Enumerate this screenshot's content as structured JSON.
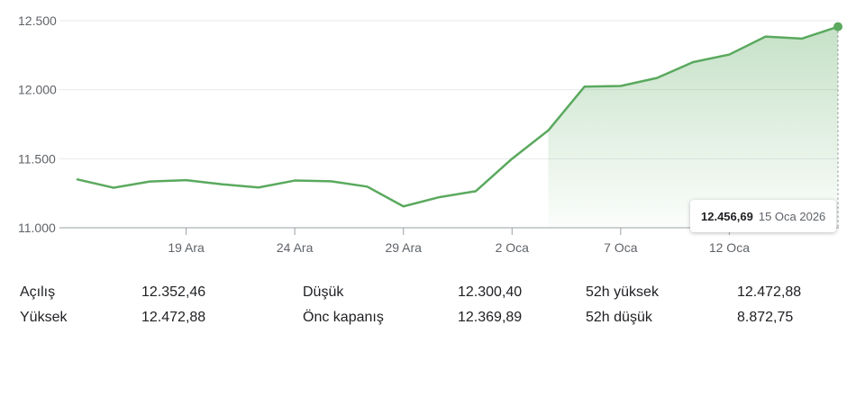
{
  "chart_data": {
    "type": "area",
    "x": [
      "16 Ara",
      "17 Ara",
      "18 Ara",
      "19 Ara",
      "22 Ara",
      "23 Ara",
      "24 Ara",
      "25 Ara",
      "26 Ara",
      "29 Ara",
      "30 Ara",
      "31 Ara",
      "2 Oca",
      "5 Oca",
      "6 Oca",
      "7 Oca",
      "8 Oca",
      "9 Oca",
      "12 Oca",
      "13 Oca",
      "14 Oca",
      "15 Oca"
    ],
    "series": [
      {
        "values": [
          11350,
          11290,
          11335,
          11345,
          11315,
          11292,
          11342,
          11337,
          11298,
          11155,
          11222,
          11265,
          11500,
          11705,
          12022,
          12027,
          12085,
          12200,
          12255,
          12385,
          12370,
          12456.69
        ]
      }
    ],
    "yticks": [
      11000,
      11500,
      12000,
      12500
    ],
    "ytick_labels": [
      "11.000",
      "11.500",
      "12.000",
      "12.500"
    ],
    "xtick_labels": [
      "19 Ara",
      "24 Ara",
      "29 Ara",
      "2 Oca",
      "7 Oca",
      "12 Oca"
    ],
    "xtick_index": [
      3,
      6,
      9,
      12,
      15,
      18
    ],
    "ylim": [
      11000,
      12500
    ],
    "grid": true,
    "line_color": "#5aa95e",
    "grid_color": "#e8eaed",
    "axis_color": "#5f6368",
    "xlabel": "",
    "ylabel": ""
  },
  "tooltip": {
    "value": "12.456,69",
    "date": "15 Oca 2026"
  },
  "stats": [
    {
      "label": "Açılış",
      "value": "12.352,46"
    },
    {
      "label": "Yüksek",
      "value": "12.472,88"
    },
    {
      "label": "Düşük",
      "value": "12.300,40"
    },
    {
      "label": "Önc kapanış",
      "value": "12.369,89"
    },
    {
      "label": "52h yüksek",
      "value": "12.472,88"
    },
    {
      "label": "52h düşük",
      "value": "8.872,75"
    }
  ]
}
